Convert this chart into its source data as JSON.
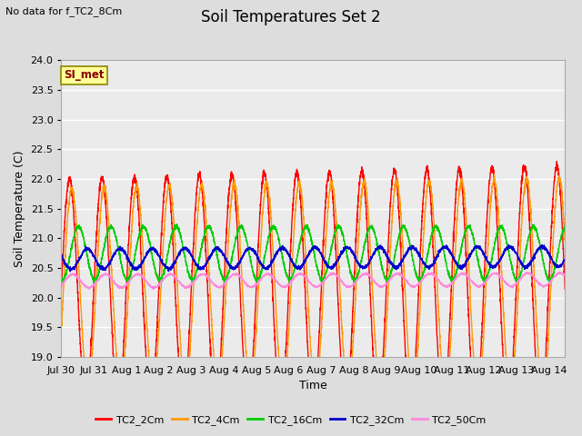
{
  "title": "Soil Temperatures Set 2",
  "top_left_text": "No data for f_TC2_8Cm",
  "annotation_text": "SI_met",
  "xlabel": "Time",
  "ylabel": "Soil Temperature (C)",
  "ylim": [
    19.0,
    24.0
  ],
  "yticks": [
    19.0,
    19.5,
    20.0,
    20.5,
    21.0,
    21.5,
    22.0,
    22.5,
    23.0,
    23.5,
    24.0
  ],
  "n_days": 15.5,
  "n_points": 3720,
  "series": {
    "TC2_2Cm": {
      "color": "#ff0000",
      "lw": 1.0,
      "base": 20.15,
      "amp": 1.85,
      "phase": 0.0,
      "trend": 0.0
    },
    "TC2_4Cm": {
      "color": "#ff9900",
      "lw": 1.0,
      "base": 20.2,
      "amp": 1.65,
      "phase": 0.07,
      "trend": 0.0
    },
    "TC2_16Cm": {
      "color": "#00cc00",
      "lw": 1.0,
      "base": 20.75,
      "amp": 0.45,
      "phase": 0.28,
      "trend": 0.0
    },
    "TC2_32Cm": {
      "color": "#0000cc",
      "lw": 1.0,
      "base": 20.65,
      "amp": 0.17,
      "phase": 0.55,
      "trend": 0.045
    },
    "TC2_50Cm": {
      "color": "#ff88dd",
      "lw": 0.9,
      "base": 20.28,
      "amp": 0.11,
      "phase": 1.1,
      "trend": 0.025
    }
  },
  "xtick_labels": [
    "Jul 30",
    "Jul 31",
    "Aug 1",
    "Aug 2",
    "Aug 3",
    "Aug 4",
    "Aug 5",
    "Aug 6",
    "Aug 7",
    "Aug 8",
    "Aug 9",
    "Aug 10",
    "Aug 11",
    "Aug 12",
    "Aug 13",
    "Aug 14"
  ],
  "bg_color": "#dddddd",
  "plot_bg_color": "#ebebeb",
  "grid_color": "#ffffff",
  "title_fontsize": 12,
  "axis_label_fontsize": 9,
  "tick_fontsize": 8
}
